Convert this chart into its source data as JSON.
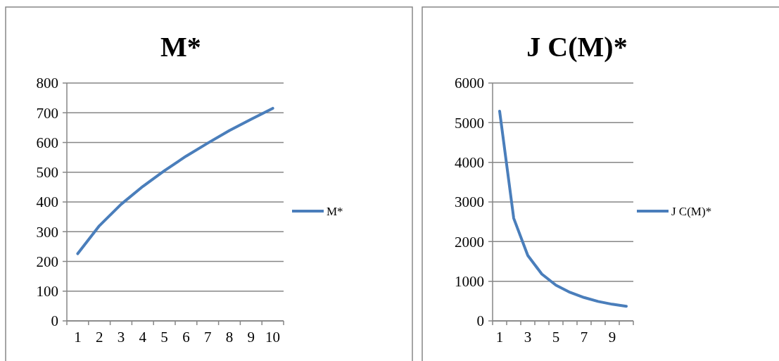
{
  "chart_data": [
    {
      "type": "line",
      "title": "M*",
      "categories": [
        "1",
        "2",
        "3",
        "4",
        "5",
        "6",
        "7",
        "8",
        "9",
        "10"
      ],
      "series": [
        {
          "name": "M*",
          "color": "#4a7ebb",
          "values": [
            226,
            320,
            392,
            452,
            505,
            554,
            598,
            640,
            678,
            715
          ]
        }
      ],
      "ylim": [
        0,
        800
      ],
      "yticks": [
        0,
        100,
        200,
        300,
        400,
        500,
        600,
        700,
        800
      ],
      "grid": "y",
      "legend": "right"
    },
    {
      "type": "line",
      "title": "J C(M)*",
      "categories": [
        "1",
        null,
        "3",
        null,
        "5",
        null,
        "7",
        null,
        "9",
        null
      ],
      "series": [
        {
          "name": "J C(M)*",
          "color": "#4a7ebb",
          "values": [
            5290,
            2590,
            1650,
            1180,
            900,
            720,
            590,
            490,
            420,
            370
          ]
        }
      ],
      "ylim": [
        0,
        6000
      ],
      "yticks": [
        0,
        1000,
        2000,
        3000,
        4000,
        5000,
        6000
      ],
      "grid": "y",
      "legend": "right"
    }
  ]
}
